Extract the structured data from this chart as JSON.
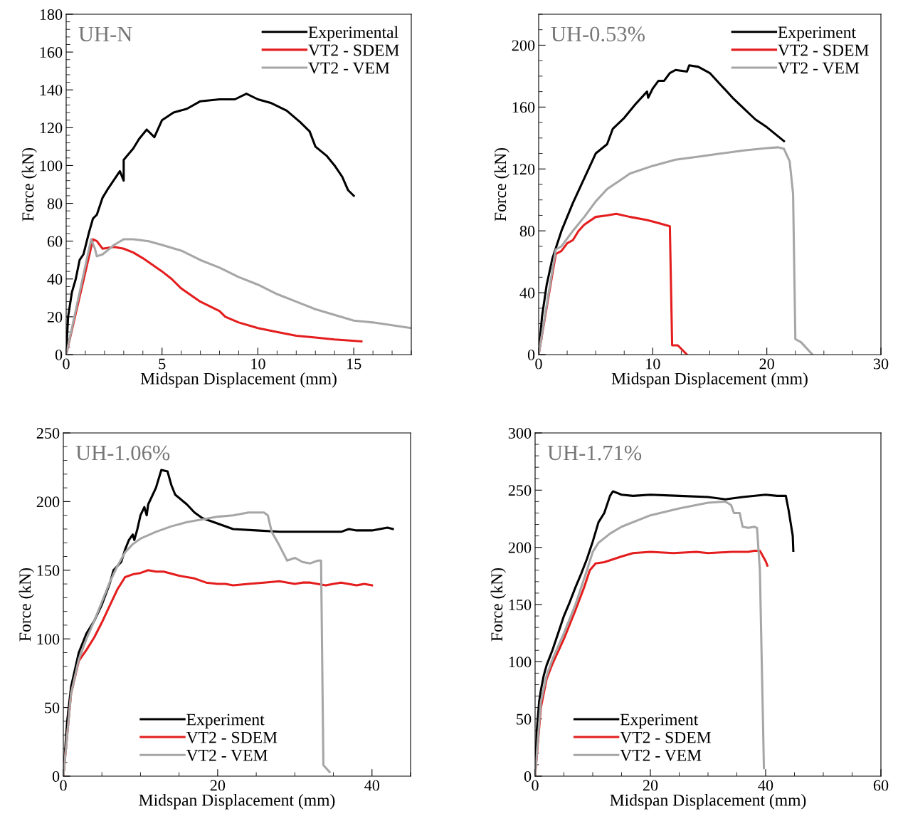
{
  "chart_data": [
    {
      "type": "line",
      "title": "UH-N",
      "xlabel": "Midspan Displacement (mm)",
      "ylabel": "Force (kN)",
      "xlim": [
        0,
        18
      ],
      "ylim": [
        0,
        180
      ],
      "xticks": [
        0,
        5,
        10,
        15
      ],
      "yticks": [
        0,
        20,
        40,
        60,
        80,
        100,
        120,
        140,
        160,
        180
      ],
      "legend": "top right",
      "grid": false,
      "series": [
        {
          "name": "Experimental",
          "color": "#000000",
          "x": [
            0,
            0.1,
            0.3,
            0.5,
            0.7,
            0.9,
            1.2,
            1.4,
            1.6,
            1.9,
            2.2,
            2.8,
            3.0,
            3.0,
            3.5,
            3.8,
            4.2,
            4.6,
            5.0,
            5.6,
            6.3,
            7.0,
            8.0,
            8.8,
            9.4,
            10.0,
            10.7,
            11.5,
            12.2,
            12.7,
            13.0,
            13.6,
            14.0,
            14.4,
            14.7,
            15.0
          ],
          "values": [
            0,
            20,
            33,
            40,
            50,
            53,
            65,
            72,
            74,
            83,
            88,
            97,
            92,
            103,
            109,
            114,
            119,
            115,
            124,
            128,
            130,
            134,
            135,
            135,
            138,
            135,
            133,
            129,
            123,
            118,
            110,
            105,
            100,
            94,
            87,
            84
          ]
        },
        {
          "name": "VT2 - SDEM",
          "color": "#e41e1e",
          "x": [
            0,
            1.4,
            1.6,
            1.9,
            2.5,
            3.0,
            3.5,
            4.0,
            5.0,
            5.5,
            6.0,
            7.0,
            8.0,
            8.3,
            9.0,
            10,
            11,
            12,
            13,
            14,
            15.4
          ],
          "values": [
            0,
            61,
            60,
            56,
            57,
            56,
            54,
            51,
            44,
            40,
            35,
            28,
            23,
            20,
            17,
            14,
            12,
            10,
            9,
            8,
            7
          ]
        },
        {
          "name": "VT2 - VEM",
          "color": "#a6a6a6",
          "x": [
            0,
            1.3,
            1.5,
            1.6,
            1.9,
            2.5,
            3.0,
            3.5,
            4.3,
            5,
            6,
            7,
            8,
            9,
            10,
            11,
            12,
            13,
            14,
            15,
            16,
            17,
            18
          ],
          "values": [
            0,
            61,
            56,
            52,
            53,
            58,
            61,
            61,
            60,
            58,
            55,
            50,
            46,
            41,
            37,
            32,
            28,
            24,
            21,
            18,
            17,
            15.5,
            14
          ]
        }
      ]
    },
    {
      "type": "line",
      "title": "UH-0.53%",
      "xlabel": "Midspan Displacement (mm)",
      "ylabel": "Force (kN)",
      "xlim": [
        0,
        30
      ],
      "ylim": [
        0,
        220
      ],
      "xticks": [
        0,
        10,
        20,
        30
      ],
      "yticks": [
        0,
        40,
        80,
        120,
        160,
        200
      ],
      "legend": "top right",
      "grid": false,
      "series": [
        {
          "name": "Experiment",
          "color": "#000000",
          "x": [
            0,
            0.3,
            0.7,
            1.2,
            2,
            3,
            4,
            5,
            6,
            6.5,
            7.5,
            8.5,
            9.5,
            9.6,
            10,
            10.5,
            11,
            11.5,
            12,
            13,
            13.2,
            14,
            15,
            16,
            17,
            18,
            19,
            20,
            21,
            21.5
          ],
          "values": [
            0,
            25,
            45,
            62,
            80,
            98,
            114,
            130,
            136,
            146,
            153,
            162,
            170,
            166,
            172,
            177,
            177,
            182,
            184,
            183,
            187,
            186,
            182,
            174,
            166,
            159,
            152,
            147,
            141,
            138
          ]
        },
        {
          "name": "VT2 - SDEM",
          "color": "#e41e1e",
          "x": [
            0,
            1.5,
            2,
            2.5,
            3,
            3.5,
            4,
            5,
            6,
            6.8,
            8,
            9.5,
            10.5,
            11.5,
            11.7,
            12.2,
            13
          ],
          "values": [
            0,
            65,
            67,
            72,
            74,
            80,
            84,
            89,
            90,
            91,
            89,
            87,
            85,
            83,
            6,
            6,
            0
          ]
        },
        {
          "name": "VT2 - VEM",
          "color": "#a6a6a6",
          "x": [
            0,
            1.5,
            2,
            3,
            4,
            5,
            6,
            7,
            8,
            10,
            12,
            14,
            16,
            18,
            20,
            21,
            21.5,
            22,
            22.3,
            22.5,
            23,
            24
          ],
          "values": [
            0,
            68,
            70,
            80,
            89,
            99,
            107,
            112,
            117,
            122,
            126,
            128,
            130,
            132,
            133.5,
            134,
            133,
            125,
            104,
            10,
            8,
            0
          ]
        }
      ]
    },
    {
      "type": "line",
      "title": "UH-1.06%",
      "xlabel": "Midspan Displacement (mm)",
      "ylabel": "Force (kN)",
      "xlim": [
        0,
        45
      ],
      "ylim": [
        0,
        250
      ],
      "xticks": [
        0,
        20,
        40
      ],
      "yticks": [
        0,
        50,
        100,
        150,
        200,
        250
      ],
      "legend": "bottom",
      "grid": false,
      "series": [
        {
          "name": "Experiment",
          "color": "#000000",
          "x": [
            0,
            0.5,
            1,
            2,
            3,
            4,
            5,
            6,
            6.5,
            7.5,
            8,
            8.5,
            9,
            9.2,
            9.6,
            10,
            10.5,
            10.8,
            11,
            12,
            12.7,
            13.5,
            14,
            14.5,
            16,
            17,
            18,
            20,
            22,
            25,
            28,
            32,
            36,
            37,
            38,
            40,
            42,
            42.7
          ],
          "values": [
            0,
            40,
            65,
            90,
            104,
            113,
            125,
            140,
            150,
            156,
            165,
            172,
            176,
            172,
            180,
            190,
            196,
            190,
            198,
            210,
            223,
            222,
            212,
            205,
            198,
            192,
            188,
            184,
            180,
            179,
            178,
            178,
            178,
            180,
            179,
            179,
            181,
            180
          ]
        },
        {
          "name": "VT2 - SDEM",
          "color": "#e41e1e",
          "x": [
            0,
            1,
            2,
            3,
            4,
            5,
            6,
            7,
            8,
            9,
            10,
            11,
            12,
            13,
            15,
            17,
            18.5,
            20,
            21,
            22,
            24,
            26,
            28,
            30,
            31,
            32,
            34,
            35,
            36,
            38,
            39,
            40
          ],
          "values": [
            0,
            60,
            84,
            92,
            101,
            112,
            124,
            136,
            145,
            147,
            148,
            150,
            149,
            149,
            146,
            144,
            141,
            140,
            140,
            139,
            140,
            141,
            142,
            140,
            141,
            141,
            139,
            140,
            141,
            139,
            140,
            139
          ]
        },
        {
          "name": "VT2 - VEM",
          "color": "#a6a6a6",
          "x": [
            0,
            1,
            2,
            3,
            4,
            5,
            6,
            7,
            8,
            9,
            10,
            12,
            14,
            16,
            18,
            20,
            22,
            24,
            26,
            26.5,
            27,
            28,
            29,
            30,
            31,
            32,
            33,
            33.4,
            33.7,
            34.5
          ],
          "values": [
            0,
            60,
            85,
            100,
            113,
            127,
            141,
            153,
            163,
            169,
            173,
            178,
            182,
            185,
            187,
            189,
            190,
            192,
            192,
            190,
            178,
            168,
            157,
            159,
            156,
            155,
            157,
            157,
            8,
            3
          ]
        }
      ]
    },
    {
      "type": "line",
      "title": "UH-1.71%",
      "xlabel": "Midspan Displacement (mm)",
      "ylabel": "Force (kN)",
      "xlim": [
        0,
        60
      ],
      "ylim": [
        0,
        300
      ],
      "xticks": [
        0,
        20,
        40,
        60
      ],
      "yticks": [
        0,
        50,
        100,
        150,
        200,
        250,
        300
      ],
      "legend": "bottom left",
      "grid": false,
      "series": [
        {
          "name": "Experiment",
          "color": "#000000",
          "x": [
            0,
            0.3,
            0.7,
            1,
            1.5,
            2,
            3,
            4,
            5,
            6,
            7,
            8,
            9,
            10,
            11,
            12,
            13,
            13.5,
            15,
            17,
            20,
            25,
            30,
            33,
            36,
            40,
            42,
            43.5,
            44,
            44.7,
            44.8
          ],
          "values": [
            0,
            40,
            65,
            75,
            88,
            97,
            110,
            125,
            140,
            152,
            165,
            177,
            190,
            205,
            222,
            230,
            245,
            249,
            246,
            245,
            246,
            245,
            244,
            242,
            244,
            246,
            245,
            245,
            232,
            210,
            197
          ]
        },
        {
          "name": "VT2 - SDEM",
          "color": "#e41e1e",
          "x": [
            0,
            1,
            2,
            3,
            5,
            7,
            8.5,
            9.5,
            10.5,
            12,
            15,
            17,
            20,
            24,
            28,
            30,
            34,
            37,
            38,
            39,
            40,
            40.3
          ],
          "values": [
            0,
            60,
            85,
            98,
            120,
            145,
            165,
            180,
            186,
            187,
            192,
            195,
            196,
            195,
            196,
            195,
            196,
            196,
            197,
            197,
            188,
            184
          ]
        },
        {
          "name": "VT2 - VEM",
          "color": "#a6a6a6",
          "x": [
            0,
            1,
            2,
            3,
            5,
            7,
            9,
            10,
            11,
            13,
            15,
            20,
            25,
            30,
            33,
            34,
            34.5,
            35.5,
            36,
            37,
            38,
            38.5,
            39,
            39.7
          ],
          "values": [
            0,
            65,
            88,
            102,
            125,
            150,
            180,
            196,
            204,
            212,
            218,
            228,
            234,
            239,
            240,
            237,
            230,
            230,
            218,
            217,
            218,
            217,
            180,
            7
          ]
        }
      ]
    }
  ]
}
